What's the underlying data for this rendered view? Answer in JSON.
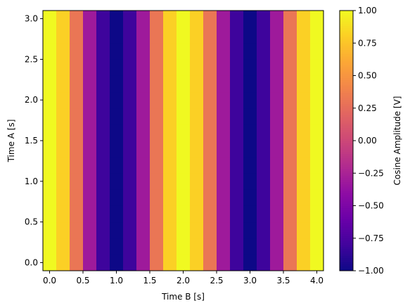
{
  "chart_data": {
    "type": "heatmap",
    "title": "",
    "xlabel": "Time B [s]",
    "ylabel": "Time A [s]",
    "colorbar_label": "Cosine Amplitude [V]",
    "colormap": "plasma",
    "xlim": [
      -0.1,
      4.1
    ],
    "ylim": [
      -0.1,
      3.1
    ],
    "clim": [
      -1.0,
      1.0
    ],
    "x_ticks": [
      0.0,
      0.5,
      1.0,
      1.5,
      2.0,
      2.5,
      3.0,
      3.5,
      4.0
    ],
    "x_tick_labels": [
      "0.0",
      "0.5",
      "1.0",
      "1.5",
      "2.0",
      "2.5",
      "3.0",
      "3.5",
      "4.0"
    ],
    "y_ticks": [
      0.0,
      0.5,
      1.0,
      1.5,
      2.0,
      2.5,
      3.0
    ],
    "y_tick_labels": [
      "0.0",
      "0.5",
      "1.0",
      "1.5",
      "2.0",
      "2.5",
      "3.0"
    ],
    "colorbar_ticks": [
      -1.0,
      -0.75,
      -0.5,
      -0.25,
      0.0,
      0.25,
      0.5,
      0.75,
      1.0
    ],
    "colorbar_tick_labels": [
      "−1.00",
      "−0.75",
      "−0.50",
      "−0.25",
      "0.00",
      "0.25",
      "0.50",
      "0.75",
      "1.00"
    ],
    "x": [
      0.0,
      0.2,
      0.4,
      0.6,
      0.8,
      1.0,
      1.2,
      1.4,
      1.6,
      1.8,
      2.0,
      2.2,
      2.4,
      2.6,
      2.8,
      3.0,
      3.2,
      3.4,
      3.6,
      3.8,
      4.0
    ],
    "y": [
      0.0,
      0.2,
      0.4,
      0.6,
      0.8,
      1.0,
      1.2,
      1.4,
      1.6,
      1.8,
      2.0,
      2.2,
      2.4,
      2.6,
      2.8,
      3.0
    ],
    "values_by_x": [
      1.0,
      0.81,
      0.31,
      -0.31,
      -0.81,
      -1.0,
      -0.81,
      -0.31,
      0.31,
      0.81,
      1.0,
      0.81,
      0.31,
      -0.31,
      -0.81,
      -1.0,
      -0.81,
      -0.31,
      0.31,
      0.81,
      1.0
    ],
    "note_constant_over_y": true
  }
}
